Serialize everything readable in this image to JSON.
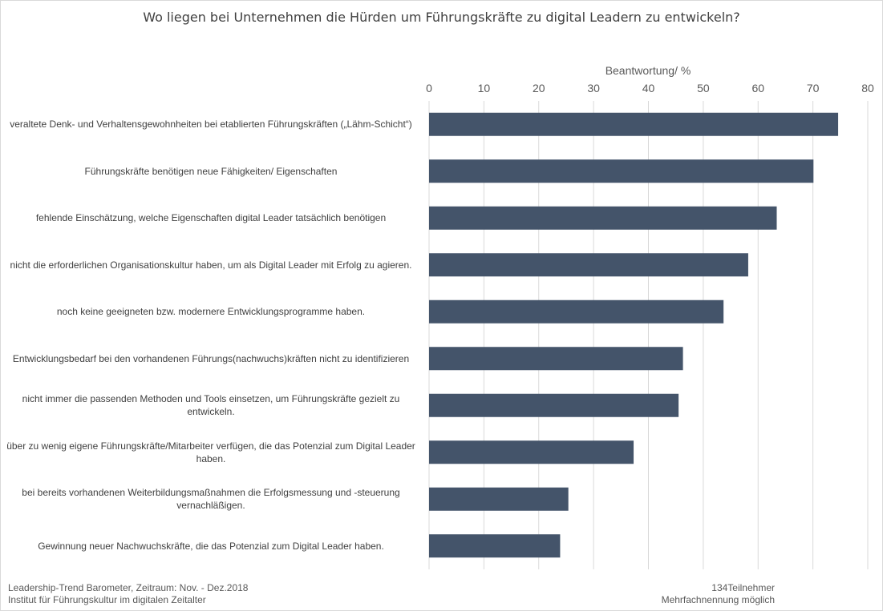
{
  "chart_data": {
    "type": "bar",
    "orientation": "horizontal",
    "title": "Wo liegen bei Unternehmen die Hürden um Führungskräfte zu digital Leadern zu entwickeln?",
    "xlabel": "Beantwortung/  %",
    "ylabel": "",
    "xlim": [
      0,
      80
    ],
    "ticks": [
      "0",
      "10",
      "20",
      "30",
      "40",
      "50",
      "60",
      "70",
      "80"
    ],
    "grid": true,
    "color": "#44546a",
    "categories": [
      "veraltete  Denk- und Verhaltensgewohnheiten   bei etablierten Führungskräften   („Lähm-Schicht“)",
      "Führungskräfte benötigen neue Fähigkeiten/ Eigenschaften",
      "fehlende Einschätzung, welche Eigenschaften digital Leader tatsächlich benötigen",
      "nicht die erforderlichen Organisationskultur haben, um als Digital Leader mit Erfolg zu agieren.",
      "noch keine geeigneten bzw. modernere Entwicklungsprogramme haben.",
      "Entwicklungsbedarf bei den vorhandenen Führungs(nachwuchs)kräften nicht zu identifizieren",
      "nicht immer die passenden Methoden und Tools einsetzen, um Führungskräfte gezielt zu entwickeln.",
      "über zu wenig eigene Führungskräfte/Mitarbeiter verfügen, die das Potenzial zum Digital Leader haben.",
      "bei bereits vorhandenen Weiterbildungsmaßnahmen die Erfolgsmessung und -steuerung vernachläßigen.",
      "Gewinnung neuer Nachwuchskräfte, die  das Potenzial zum Digital Leader haben."
    ],
    "values": [
      74.6,
      70.1,
      63.4,
      58.2,
      53.7,
      46.3,
      45.5,
      37.3,
      25.4,
      23.9
    ]
  },
  "footer": {
    "source_line1": "Leadership-Trend  Barometer,  Zeitraum:  Nov.  - Dez.2018",
    "source_line2": "Institut für Führungskultur  im digitalen Zeitalter",
    "participants": "134Teilnehmer",
    "multiple": "Mehrfachnennung   möglich"
  }
}
